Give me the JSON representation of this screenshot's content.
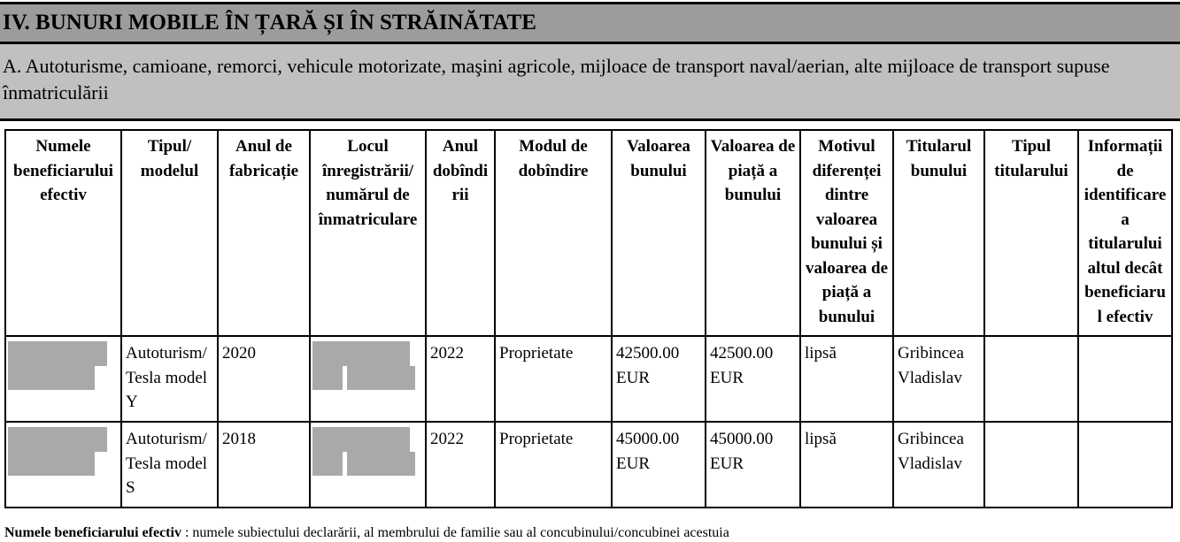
{
  "section_title": "IV. BUNURI MOBILE ÎN ȚARĂ ȘI ÎN STRĂINĂTATE",
  "subsection_title": "A. Autoturisme, camioane, remorci, vehicule motorizate, maşini agricole, mijloace de transport naval/aerian, alte mijloace de transport supuse înmatriculării",
  "table": {
    "headers": [
      "Numele beneficiarului efectiv",
      "Tipul/ modelul",
      "Anul de fabricație",
      "Locul înregistrării/ numărul de înmatriculare",
      "Anul dobîndirii",
      "Modul de dobîndire",
      "Valoarea bunului",
      "Valoarea de piață a bunului",
      "Motivul diferenței dintre valoarea bunului și valoarea de piață a bunului",
      "Titularul bunului",
      "Tipul titularului",
      "Informații de identificare a titularului altul decât beneficiarul efectiv"
    ],
    "rows": [
      {
        "model": "Autoturism/Tesla model Y",
        "year": "2020",
        "acq_year": "2022",
        "mode": "Proprietate",
        "value": "42500.00 EUR",
        "market": "42500.00 EUR",
        "reason": "lipsă",
        "holder": "Gribincea Vladislav",
        "holder_type": "",
        "holder_info": ""
      },
      {
        "model": "Autoturism/Tesla model S",
        "year": "2018",
        "acq_year": "2022",
        "mode": "Proprietate",
        "value": "45000.00 EUR",
        "market": "45000.00 EUR",
        "reason": "lipsă",
        "holder": "Gribincea Vladislav",
        "holder_type": "",
        "holder_info": ""
      }
    ]
  },
  "footnote": {
    "term": "Numele beneficiarului efectiv",
    "text": " : numele subiectului declarării, al membrului de familie sau al concubinului/concubinei acestuia"
  },
  "colors": {
    "section_bg": "#9c9c9c",
    "subsection_bg": "#c0c0c0",
    "redaction": "#a9a9a9"
  }
}
